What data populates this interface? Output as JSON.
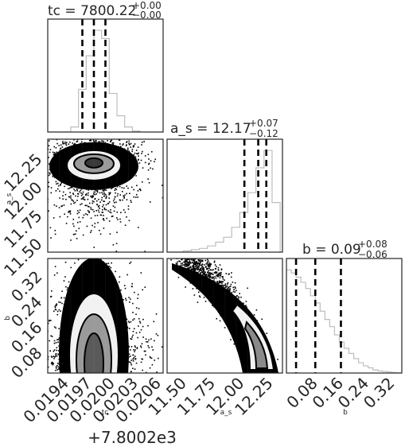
{
  "chart_data": {
    "type": "corner",
    "parameters": [
      "tc",
      "a_s",
      "b"
    ],
    "titles": [
      {
        "name": "tc",
        "value": "7800.22",
        "plus": "+0.00",
        "minus": "−0.00"
      },
      {
        "name": "a_s",
        "value": "12.17",
        "plus": "+0.07",
        "minus": "−0.12"
      },
      {
        "name": "b",
        "value": "0.09",
        "plus": "+0.08",
        "minus": "−0.06"
      }
    ],
    "axes": {
      "tc": {
        "label": "tc",
        "range": [
          0.0192,
          0.0207
        ],
        "ticks": [
          0.0194,
          0.0197,
          0.02,
          0.0203,
          0.0206
        ],
        "tick_labels": [
          "0.0194",
          "0.0197",
          "0.0200",
          "0.0203",
          "0.0206"
        ],
        "offset_text": "+7.8002e3"
      },
      "a_s": {
        "label": "a_s",
        "range": [
          11.38,
          12.38
        ],
        "ticks": [
          11.5,
          11.75,
          12.0,
          12.25
        ],
        "tick_labels": [
          "11.50",
          "11.75",
          "12.00",
          "12.25"
        ]
      },
      "b": {
        "label": "b",
        "range": [
          0.0,
          0.36
        ],
        "ticks": [
          0.08,
          0.16,
          0.24,
          0.32
        ],
        "tick_labels": [
          "0.08",
          "0.16",
          "0.24",
          "0.32"
        ]
      }
    },
    "marginals": {
      "tc": {
        "quantiles": [
          0.01965,
          0.0198,
          0.01995
        ],
        "bins": [
          0.0192,
          0.0193,
          0.0194,
          0.0195,
          0.0196,
          0.0197,
          0.0198,
          0.0199,
          0.02,
          0.0201,
          0.0202,
          0.0203,
          0.0204,
          0.0205,
          0.0206,
          0.0207
        ],
        "counts": [
          0,
          0,
          0,
          0.05,
          0.42,
          0.75,
          1.0,
          0.92,
          0.38,
          0.16,
          0.05,
          0.01,
          0,
          0,
          0
        ]
      },
      "a_s": {
        "quantiles": [
          12.05,
          12.17,
          12.24
        ],
        "bins": [
          11.38,
          11.45,
          11.52,
          11.59,
          11.66,
          11.73,
          11.8,
          11.87,
          11.94,
          12.01,
          12.08,
          12.15,
          12.22,
          12.29,
          12.36
        ],
        "counts": [
          0,
          0,
          0.01,
          0.02,
          0.03,
          0.05,
          0.08,
          0.12,
          0.2,
          0.32,
          0.48,
          0.68,
          0.82,
          0.4
        ]
      },
      "b": {
        "quantiles": [
          0.03,
          0.09,
          0.17
        ],
        "bins": [
          0.0,
          0.015,
          0.03,
          0.045,
          0.06,
          0.075,
          0.09,
          0.105,
          0.12,
          0.135,
          0.15,
          0.165,
          0.18,
          0.195,
          0.21,
          0.225,
          0.24,
          0.255,
          0.27,
          0.285,
          0.3,
          0.315,
          0.33,
          0.345,
          0.36
        ],
        "counts": [
          1.0,
          0.97,
          0.93,
          0.88,
          0.82,
          0.75,
          0.68,
          0.6,
          0.52,
          0.45,
          0.37,
          0.3,
          0.24,
          0.19,
          0.14,
          0.1,
          0.07,
          0.05,
          0.03,
          0.02,
          0.015,
          0.01,
          0.005,
          0.002
        ]
      }
    },
    "joint": {
      "tc_a_s": {
        "center": [
          0.0198,
          12.17
        ],
        "spread": [
          0.00032,
          0.17
        ]
      },
      "tc_b": {
        "center": [
          0.0198,
          0.04
        ],
        "spread": [
          0.00032,
          0.3
        ]
      },
      "a_s_b": {
        "curve": "anti-correlated banana",
        "from": [
          11.5,
          0.36
        ],
        "to": [
          12.28,
          0.0
        ]
      }
    },
    "colors": {
      "hist": "#bdbdbd",
      "quantile": "#000000",
      "density": "#000000",
      "contour_fill_light": "#f2f2f2"
    }
  }
}
